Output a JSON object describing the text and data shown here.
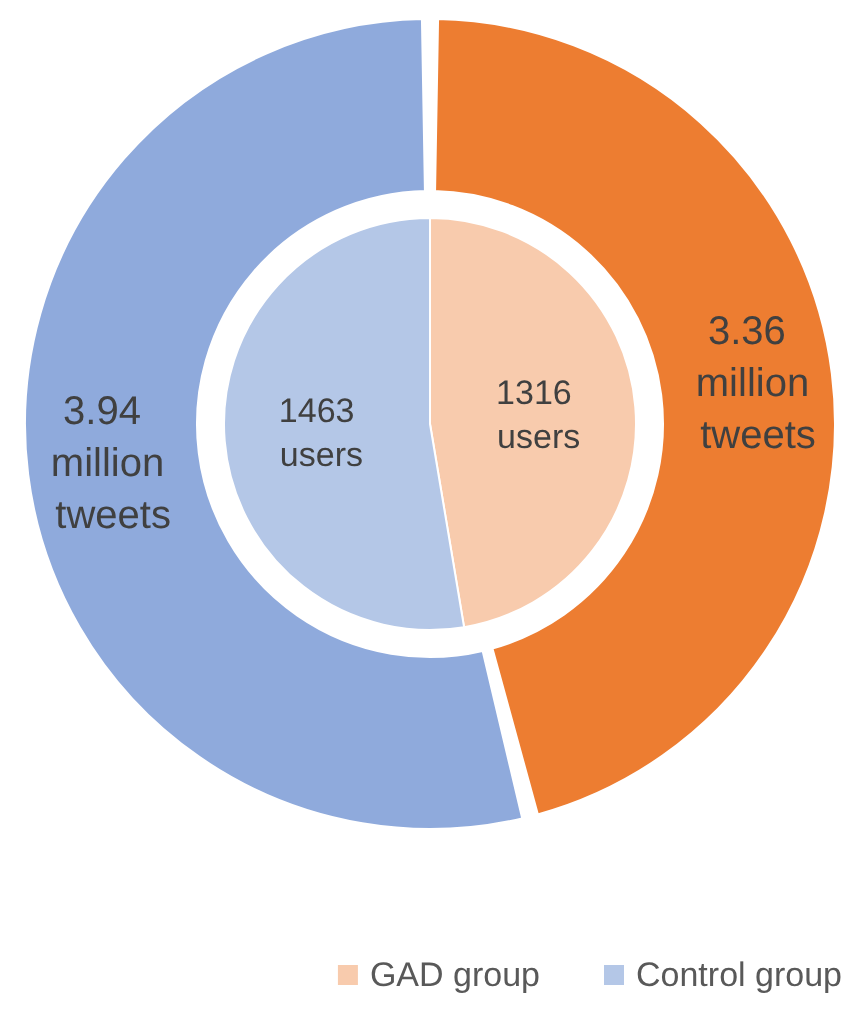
{
  "chart_data": {
    "type": "donut",
    "categories": [
      "GAD group",
      "Control group"
    ],
    "legend": "bottom right",
    "series": [
      {
        "type": "pie",
        "values": [
          1316,
          1463
        ],
        "colors": [
          "#f8cbad",
          "#b4c7e7"
        ],
        "value_labels": [
          "1316 users",
          "1463 users"
        ]
      },
      {
        "values": [
          3.36,
          3.94
        ],
        "colors": [
          "#ed7d31",
          "#8faadc"
        ],
        "value_labels": [
          "3.36 million tweets",
          "3.94 million tweets"
        ]
      }
    ]
  }
}
